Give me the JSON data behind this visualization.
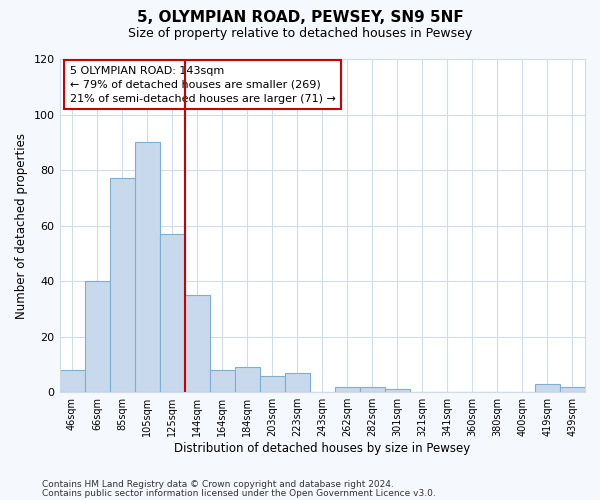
{
  "title": "5, OLYMPIAN ROAD, PEWSEY, SN9 5NF",
  "subtitle": "Size of property relative to detached houses in Pewsey",
  "xlabel": "Distribution of detached houses by size in Pewsey",
  "ylabel": "Number of detached properties",
  "bar_labels": [
    "46sqm",
    "66sqm",
    "85sqm",
    "105sqm",
    "125sqm",
    "144sqm",
    "164sqm",
    "184sqm",
    "203sqm",
    "223sqm",
    "243sqm",
    "262sqm",
    "282sqm",
    "301sqm",
    "321sqm",
    "341sqm",
    "360sqm",
    "380sqm",
    "400sqm",
    "419sqm",
    "439sqm"
  ],
  "bar_heights": [
    8,
    40,
    77,
    90,
    57,
    35,
    8,
    9,
    6,
    7,
    0,
    2,
    2,
    1,
    0,
    0,
    0,
    0,
    0,
    3,
    2
  ],
  "bar_color": "#c8d9ed",
  "bar_edge_color": "#7bafd4",
  "marker_index": 5,
  "marker_color": "#cc0000",
  "annotation_line1": "5 OLYMPIAN ROAD: 143sqm",
  "annotation_line2": "← 79% of detached houses are smaller (269)",
  "annotation_line3": "21% of semi-detached houses are larger (71) →",
  "annotation_box_color": "#ffffff",
  "annotation_box_edge_color": "#cc0000",
  "ylim": [
    0,
    120
  ],
  "yticks": [
    0,
    20,
    40,
    60,
    80,
    100,
    120
  ],
  "footer1": "Contains HM Land Registry data © Crown copyright and database right 2024.",
  "footer2": "Contains public sector information licensed under the Open Government Licence v3.0.",
  "bg_color": "#f5f8fc",
  "plot_bg_color": "#ffffff",
  "grid_color": "#d0dce8"
}
